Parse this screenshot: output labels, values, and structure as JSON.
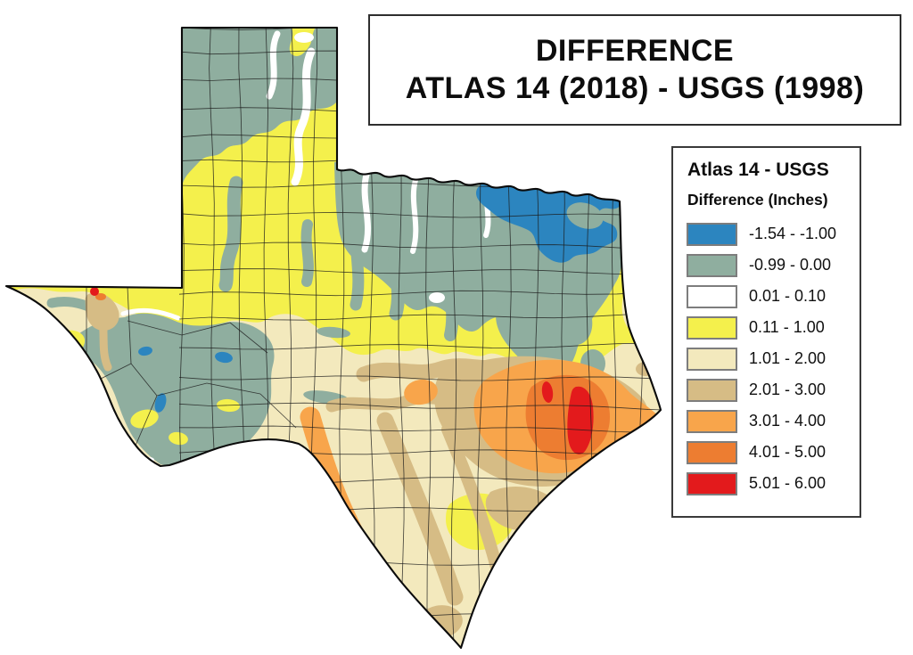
{
  "title": {
    "line1": "DIFFERENCE",
    "line2": "ATLAS 14 (2018) - USGS (1998)"
  },
  "legend": {
    "title": "Atlas 14 - USGS",
    "subtitle": "Difference (Inches)",
    "items": [
      {
        "label": "-1.54 - -1.00",
        "color": "#2C85BF"
      },
      {
        "label": "-0.99 - 0.00",
        "color": "#8FAE9F"
      },
      {
        "label": "0.01 - 0.10",
        "color": "#FFFFFF"
      },
      {
        "label": "0.11 - 1.00",
        "color": "#F4F04C"
      },
      {
        "label": "1.01 - 2.00",
        "color": "#F3E9BD"
      },
      {
        "label": "2.01 - 3.00",
        "color": "#D6BC85"
      },
      {
        "label": "3.01 - 4.00",
        "color": "#F8A54B"
      },
      {
        "label": "4.01 - 5.00",
        "color": "#ED7D31"
      },
      {
        "label": "5.01 - 6.00",
        "color": "#E31A1C"
      }
    ]
  },
  "map": {
    "region_shape": "Texas",
    "features": [
      "state-outline",
      "county-boundaries",
      "difference-isopleth-regions"
    ],
    "line_color": "#1c1c1c",
    "outline_color": "#0b0b0b"
  }
}
